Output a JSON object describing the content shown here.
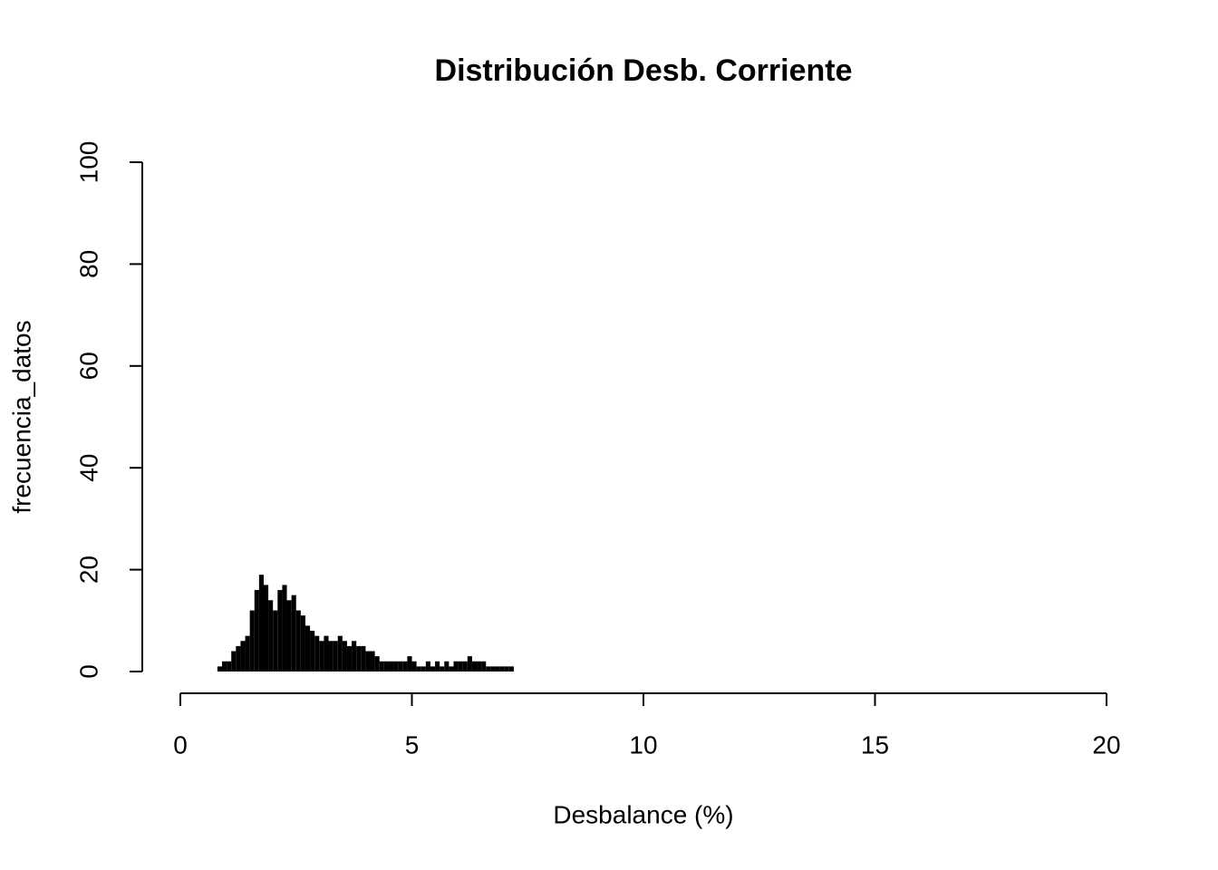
{
  "chart_data": {
    "type": "histogram",
    "title": "Distribución Desb. Corriente",
    "x_label": "Desbalance (%)",
    "y_label": "frecuencia_datos",
    "bins": [
      0.8,
      0.9,
      1.0,
      1.1,
      1.2,
      1.3,
      1.4,
      1.5,
      1.6,
      1.7,
      1.8,
      1.9,
      2.0,
      2.1,
      2.2,
      2.3,
      2.4,
      2.5,
      2.6,
      2.7,
      2.8,
      2.9,
      3.0,
      3.1,
      3.2,
      3.3,
      3.4,
      3.5,
      3.6,
      3.7,
      3.8,
      3.9,
      4.0,
      4.1,
      4.2,
      4.3,
      4.4,
      4.5,
      4.6,
      4.7,
      4.8,
      4.9,
      5.0,
      5.1,
      5.2,
      5.3,
      5.4,
      5.5,
      5.6,
      5.7,
      5.8,
      5.9,
      6.0,
      6.1,
      6.2,
      6.3,
      6.4,
      6.5,
      6.6,
      6.7,
      6.8,
      6.9,
      7.0,
      7.1,
      7.2
    ],
    "values": [
      1,
      2,
      2,
      4,
      5,
      6,
      7,
      12,
      16,
      19,
      17,
      14,
      12,
      16,
      17,
      14,
      15,
      12,
      11,
      9,
      8,
      7,
      6,
      7,
      6,
      6,
      7,
      6,
      5,
      6,
      5,
      5,
      4,
      4,
      3,
      2,
      2,
      2,
      2,
      2,
      2,
      3,
      2,
      1,
      1,
      2,
      1,
      2,
      1,
      2,
      1,
      2,
      2,
      2,
      3,
      2,
      2,
      2,
      1,
      1,
      1,
      1,
      1,
      1
    ],
    "color": "#000000",
    "xlim": [
      0,
      20
    ],
    "xticks": [
      0,
      5,
      10,
      15,
      20
    ],
    "ylim": [
      0,
      100
    ],
    "yticks": [
      0,
      20,
      40,
      60,
      80,
      100
    ]
  }
}
